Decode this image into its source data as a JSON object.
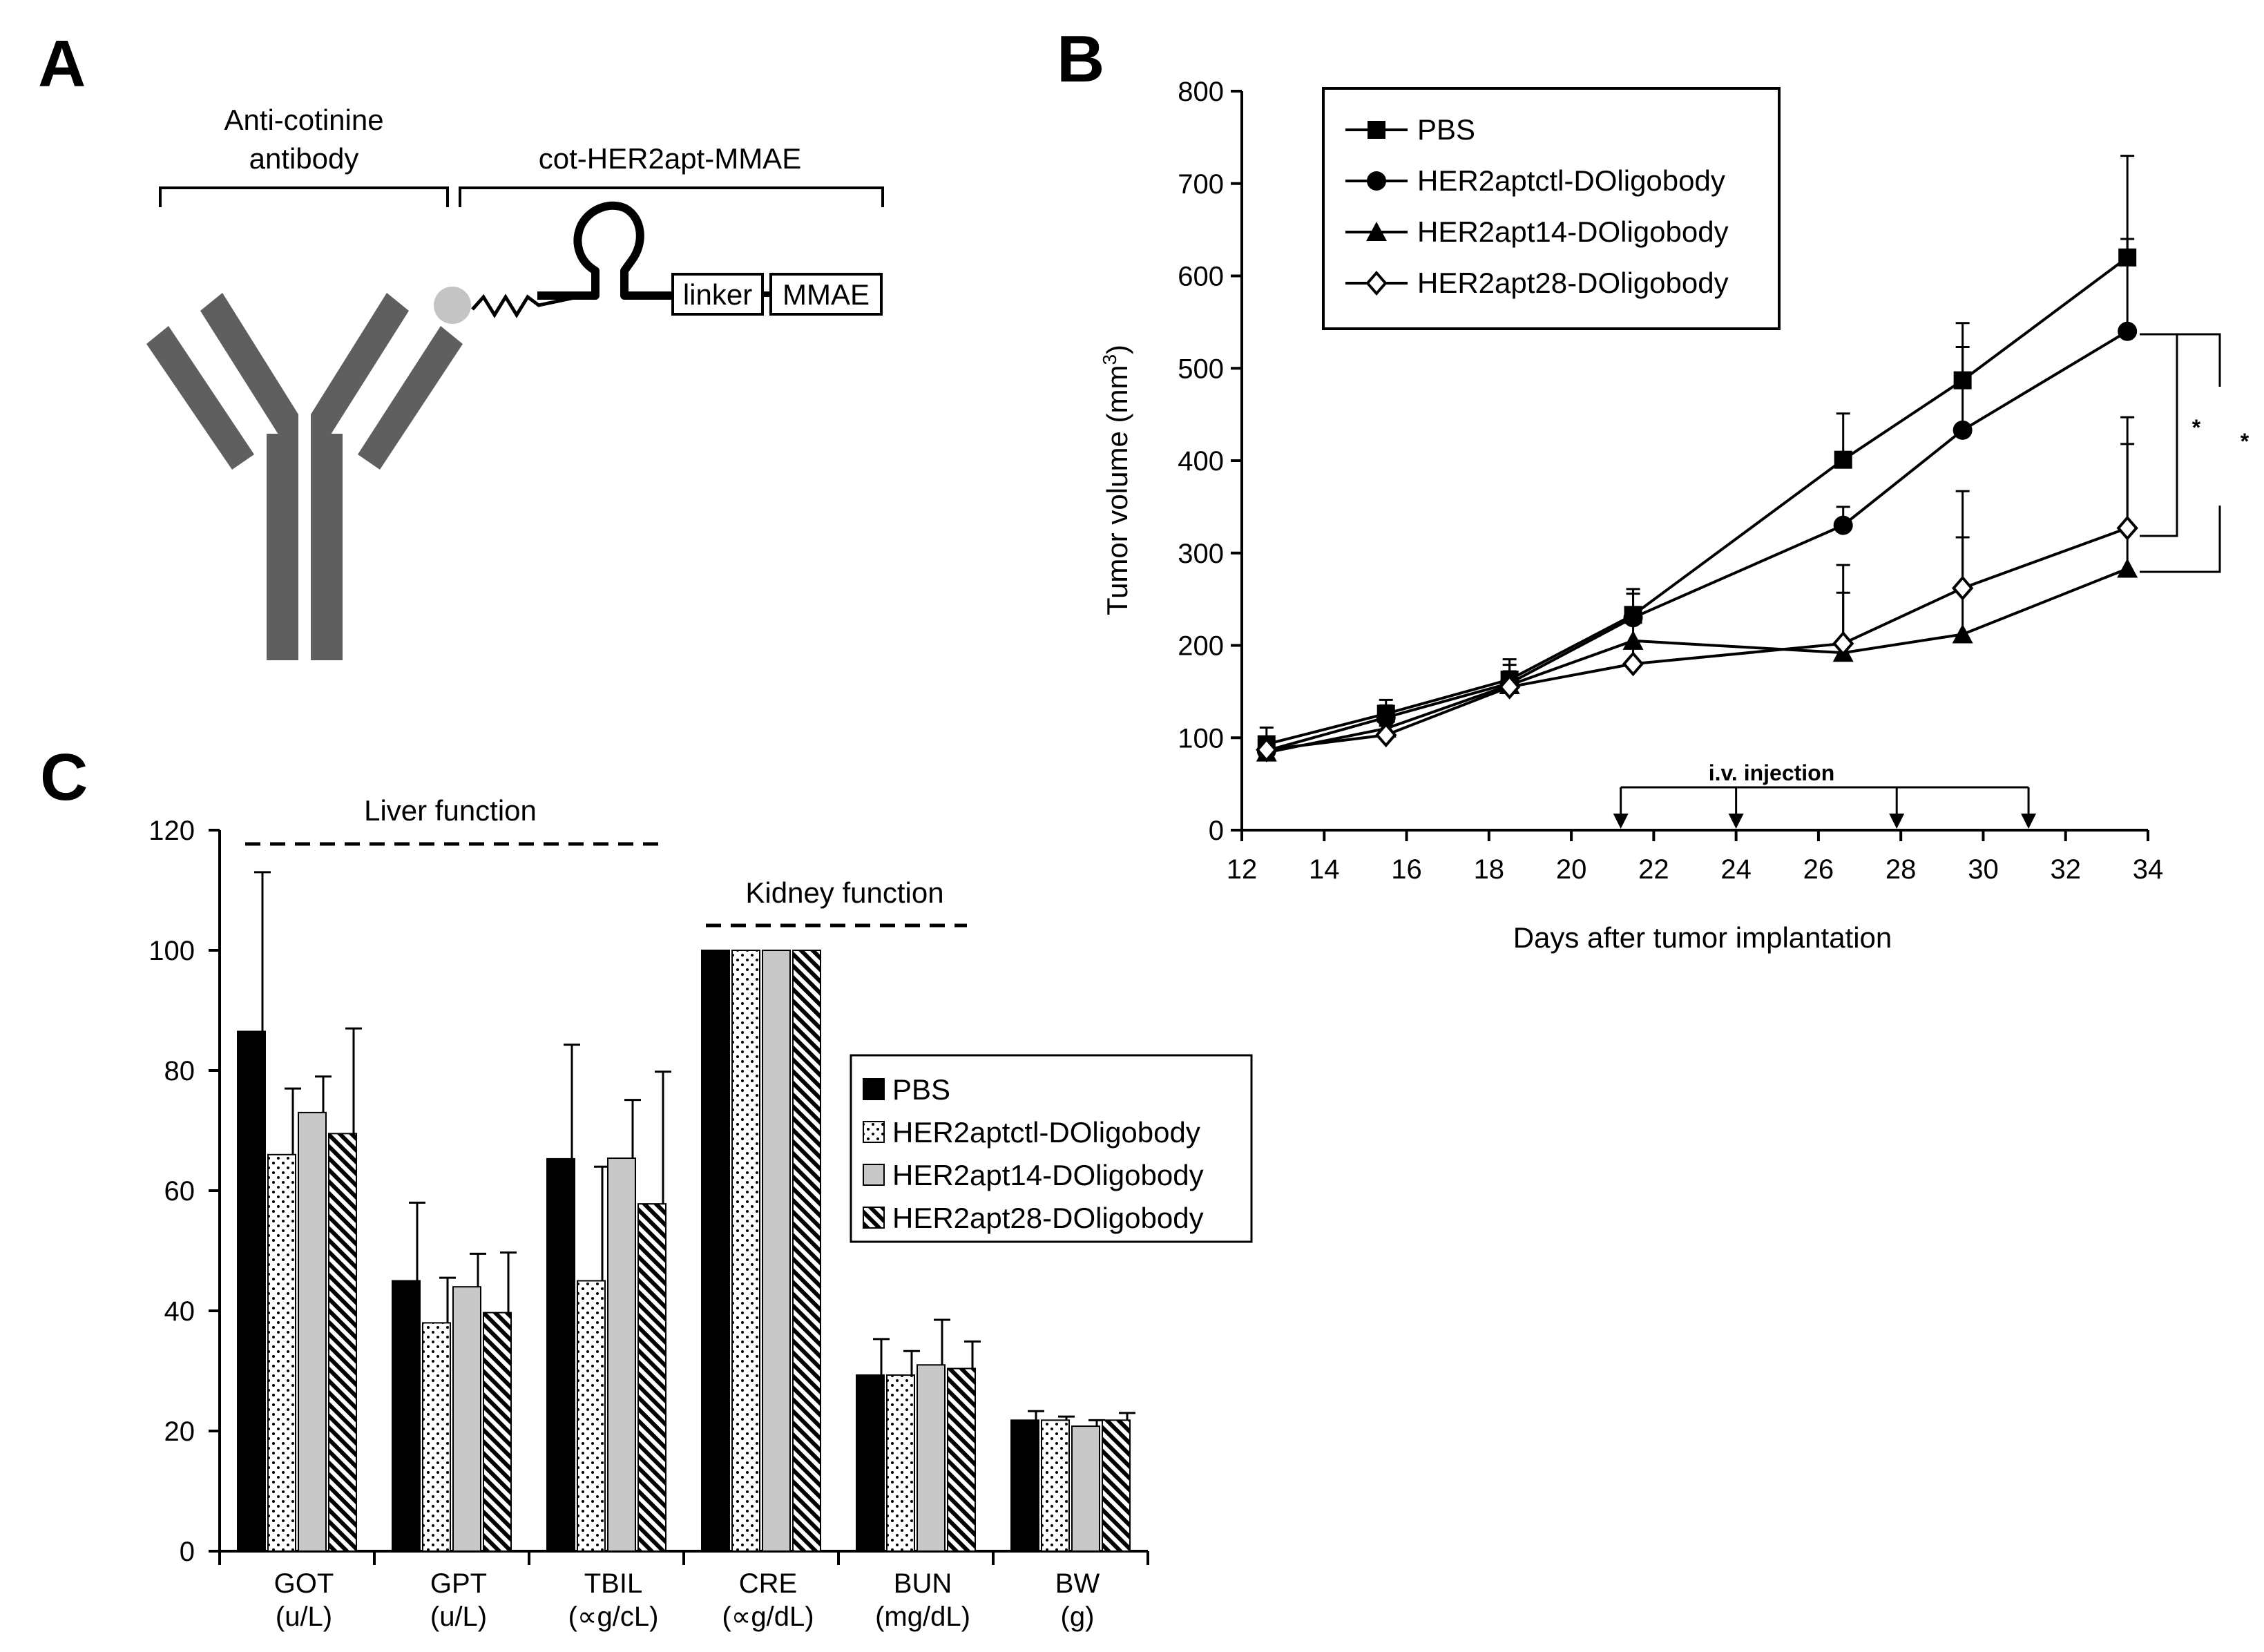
{
  "panels": {
    "a": {
      "letter": "A",
      "antibody_label": [
        "Anti-cotinine",
        "antibody"
      ],
      "conjugate_label": "cot-HER2apt-MMAE",
      "linker_label": "linker",
      "drug_label": "MMAE"
    },
    "b": {
      "letter": "B",
      "injection_label": "i.v.  injection",
      "significance": [
        "*",
        "*"
      ]
    },
    "c": {
      "letter": "C",
      "liver_label": "Liver function",
      "kidney_label": "Kidney function"
    }
  },
  "chart_data": [
    {
      "id": "B",
      "type": "line",
      "title": "",
      "xlabel": "Days after tumor implantation",
      "ylabel": "Tumor volume (mm",
      "ylabel_sup": "3",
      "ylabel_end": ")",
      "xlim": [
        12,
        34
      ],
      "ylim": [
        0,
        800
      ],
      "xticks": [
        12,
        14,
        16,
        18,
        20,
        22,
        24,
        26,
        28,
        30,
        32,
        34
      ],
      "yticks": [
        0,
        100,
        200,
        300,
        400,
        500,
        600,
        700,
        800
      ],
      "legend_position": "top-left",
      "injection_days": [
        21.2,
        24,
        27.9,
        31.1
      ],
      "series": [
        {
          "name": "PBS",
          "marker": "square-filled",
          "x": [
            12.6,
            15.5,
            18.5,
            21.5,
            26.6,
            29.5,
            33.5
          ],
          "y": [
            93,
            126,
            163,
            233,
            401,
            487,
            620
          ],
          "err": [
            18,
            15,
            22,
            28,
            50,
            62,
            110
          ]
        },
        {
          "name": "HER2aptctl-DOligobody",
          "marker": "circle-filled",
          "x": [
            12.6,
            15.5,
            18.5,
            21.5,
            26.6,
            29.5,
            33.5
          ],
          "y": [
            86,
            122,
            159,
            230,
            330,
            433,
            540
          ],
          "err": [
            14,
            13,
            20,
            26,
            20,
            90,
            100
          ]
        },
        {
          "name": "HER2apt14-DOligobody",
          "marker": "triangle-filled",
          "x": [
            12.6,
            15.5,
            18.5,
            21.5,
            26.6,
            29.5,
            33.5
          ],
          "y": [
            84,
            110,
            157,
            205,
            192,
            212,
            283
          ],
          "err": [
            10,
            10,
            15,
            24,
            65,
            105,
            135
          ]
        },
        {
          "name": "HER2apt28-DOligobody",
          "marker": "diamond-open",
          "x": [
            12.6,
            15.5,
            18.5,
            21.5,
            26.6,
            29.5,
            33.5
          ],
          "y": [
            87,
            103,
            155,
            180,
            202,
            262,
            327
          ],
          "err": [
            12,
            10,
            12,
            22,
            85,
            105,
            120
          ]
        }
      ]
    },
    {
      "id": "C",
      "type": "bar",
      "title": "",
      "xlabel": "",
      "ylabel": "",
      "ylim": [
        0,
        120
      ],
      "yticks": [
        0,
        20,
        40,
        60,
        80,
        100,
        120
      ],
      "legend_position": "center-right",
      "categories": [
        [
          "GOT",
          "(u/L)"
        ],
        [
          "GPT",
          "(u/L)"
        ],
        [
          "TBIL",
          "(∝g/cL)"
        ],
        [
          "CRE",
          "(∝g/dL)"
        ],
        [
          "BUN",
          "(mg/dL)"
        ],
        [
          "BW",
          "(g)"
        ]
      ],
      "series": [
        {
          "name": "PBS",
          "pattern": "solid-black",
          "values": [
            86.5,
            45,
            65.3,
            100,
            29.3,
            21.8
          ],
          "err": [
            26.5,
            13,
            19,
            0,
            6,
            1.5
          ]
        },
        {
          "name": "HER2aptctl-DOligobody",
          "pattern": "dotted-white",
          "values": [
            66,
            38,
            45,
            100,
            29.3,
            21.8
          ],
          "err": [
            11,
            7.5,
            19,
            0,
            4,
            0.6
          ]
        },
        {
          "name": "HER2apt14-DOligobody",
          "pattern": "gray",
          "values": [
            73,
            44,
            65.4,
            100,
            31,
            20.8
          ],
          "err": [
            6,
            5.5,
            9.7,
            0,
            7.5,
            1
          ]
        },
        {
          "name": "HER2apt28-DOligobody",
          "pattern": "hatched",
          "values": [
            69.5,
            39.7,
            57.8,
            100,
            30.4,
            21.8
          ],
          "err": [
            17.5,
            10,
            22,
            0,
            4.5,
            1.2
          ]
        }
      ]
    }
  ]
}
